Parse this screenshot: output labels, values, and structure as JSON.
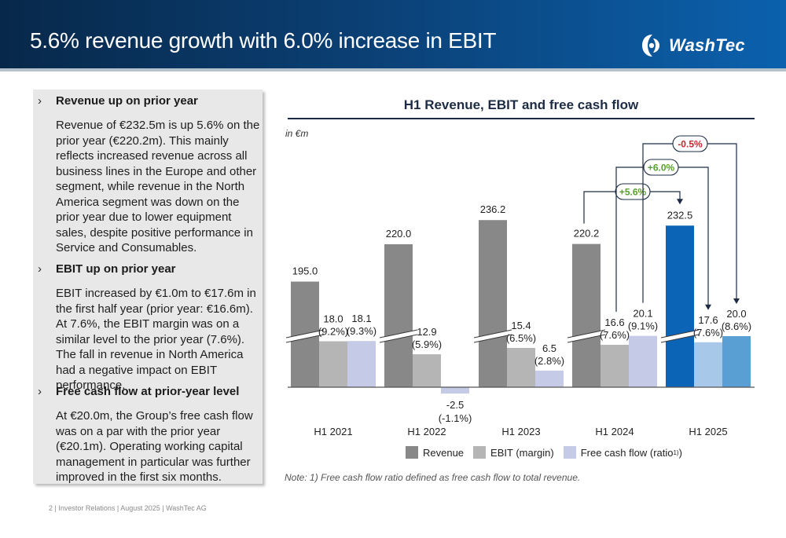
{
  "header": {
    "title": "5.6% revenue growth with 6.0% increase in EBIT",
    "logo_text": "WashTec"
  },
  "bullets": [
    {
      "marker": "›",
      "heading": "Revenue up on prior year",
      "body": "Revenue of €232.5m is up 5.6% on the prior year (€220.2m). This mainly reflects increased revenue across all business lines in the Europe and other segment, while revenue in the North America segment was down on the prior year due to lower equipment sales, despite positive performance in Service and Consumables."
    },
    {
      "marker": "›",
      "heading": "EBIT up on prior year",
      "body": "EBIT increased by €1.0m to €17.6m in the first half year (prior year: €16.6m). At 7.6%, the EBIT margin was on a similar level to the prior year (7.6%). The fall in revenue in North America had a negative impact on EBIT performance."
    },
    {
      "marker": "›",
      "heading": "Free cash flow at prior-year level",
      "body": "At €20.0m, the Group’s free cash flow was on a par with the prior year (€20.1m). Operating working capital management in particular was further improved in the first six months."
    }
  ],
  "chart_data": {
    "type": "bar",
    "title": "H1 Revenue, EBIT and free cash flow",
    "unit_label": "in €m",
    "categories": [
      "H1 2021",
      "H1 2022",
      "H1 2023",
      "H1 2024",
      "H1 2025"
    ],
    "axis_break": true,
    "series": [
      {
        "name": "Revenue",
        "values": [
          195.0,
          220.0,
          236.2,
          220.2,
          232.5
        ],
        "labels": [
          "195.0",
          "220.0",
          "236.2",
          "220.2",
          "232.5"
        ],
        "ratios": [
          "",
          "",
          "",
          "",
          ""
        ]
      },
      {
        "name": "EBIT (margin)",
        "values": [
          18.0,
          12.9,
          15.4,
          16.6,
          17.6
        ],
        "labels": [
          "18.0",
          "12.9",
          "15.4",
          "16.6",
          "17.6"
        ],
        "ratios": [
          "(9.2%)",
          "(5.9%)",
          "(6.5%)",
          "(7.6%)",
          "(7.6%)"
        ]
      },
      {
        "name": "Free cash flow (ratio",
        "values": [
          18.1,
          -2.5,
          6.5,
          20.1,
          20.0
        ],
        "labels": [
          "18.1",
          "-2.5",
          "6.5",
          "20.1",
          "20.0"
        ],
        "ratios": [
          "(9.3%)",
          "(-1.1%)",
          "(2.8%)",
          "(9.1%)",
          "(8.6%)"
        ]
      }
    ],
    "legend_footnote": "1)",
    "legend_close": ")",
    "legend_position": "bottom",
    "comparisons": [
      {
        "label": "+5.6%",
        "series": "Revenue",
        "from": "H1 2024",
        "to": "H1 2025",
        "color": "#5a9e2f"
      },
      {
        "label": "+6.0%",
        "series": "EBIT (margin)",
        "from": "H1 2024",
        "to": "H1 2025",
        "color": "#5a9e2f"
      },
      {
        "label": "-0.5%",
        "series": "Free cash flow (ratio",
        "from": "H1 2024",
        "to": "H1 2025",
        "color": "#c0272d"
      }
    ],
    "note": "Note: 1) Free cash flow ratio defined as free cash flow to total revenue.",
    "colors": {
      "revenue": "#888888",
      "ebit": "#b5b5b5",
      "fcf": "#c5cbe6",
      "revenue_highlight": "#0b64b5",
      "ebit_highlight": "#a8c8ea",
      "fcf_highlight": "#5a9fd4",
      "axis": "#555555"
    }
  },
  "footer": {
    "text": "2 | Investor Relations | August 2025 | WashTec AG"
  }
}
